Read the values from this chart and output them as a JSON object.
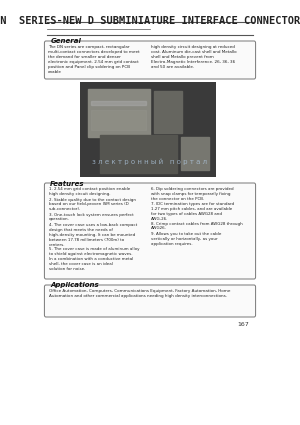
{
  "bg_color": "#f5f5f0",
  "page_bg": "#ffffff",
  "title": "DN  SERIES-NEW D SUBMINIATURE INTERFACE CONNECTORS",
  "title_fontsize": 7.5,
  "header_line_color": "#555555",
  "section_general_title": "General",
  "general_text_left": "The DN series are compact, rectangular multi-contact connectors developed to meet the demand for smaller and denser electronic equipment. 2.54 mm grid contact position and Panel clip soldering on PCB enable",
  "general_text_right": "high density circuit designing at reduced cost. Aluminum die-cast shell and Metallo shell and Metallo prevent from Electro-Magnetic Interference. 26, 36, 36 and 50 are available.",
  "section_features_title": "Features",
  "features_left": [
    "2.54 mm grid contact position enable high density circuit designing.",
    "Stable quality due to the contact design based on our field-proven ISM series (D sub-connector).",
    "One-touch lock system ensures perfect operation.",
    "The cover case uses a low-back compact design that meets the needs of high-density mounting. It can be mounted between 17.78 millimeters (700m) to centers.",
    "The cover case is made of aluminum alloy to shield against electromagnetic waves. In a combination with a conductive metal shell, the cover case is an ideal solution for noise."
  ],
  "features_right": [
    "Dip soldering connectors are provided with snap clamps for temporarily fixing the connector on the PCB.",
    "IDC termination types are for standard 1.27 mm pitch cables, and are available for two types of cables AWG28 and AWG-26.",
    "Crimp contact cables from AWG28 through AWG26.",
    "Allows you to take out the cable vertically or horizontally, as your application requires."
  ],
  "section_applications_title": "Applications",
  "applications_text": "Office Automation, Computers, Communications Equipment, Factory Automation, Home Automation and other commercial applications needing high density interconnections.",
  "page_number": "167",
  "watermark_text": "з л е к т р о н н ы й   п о р т а л",
  "watermark_color": "#b0c8e0"
}
